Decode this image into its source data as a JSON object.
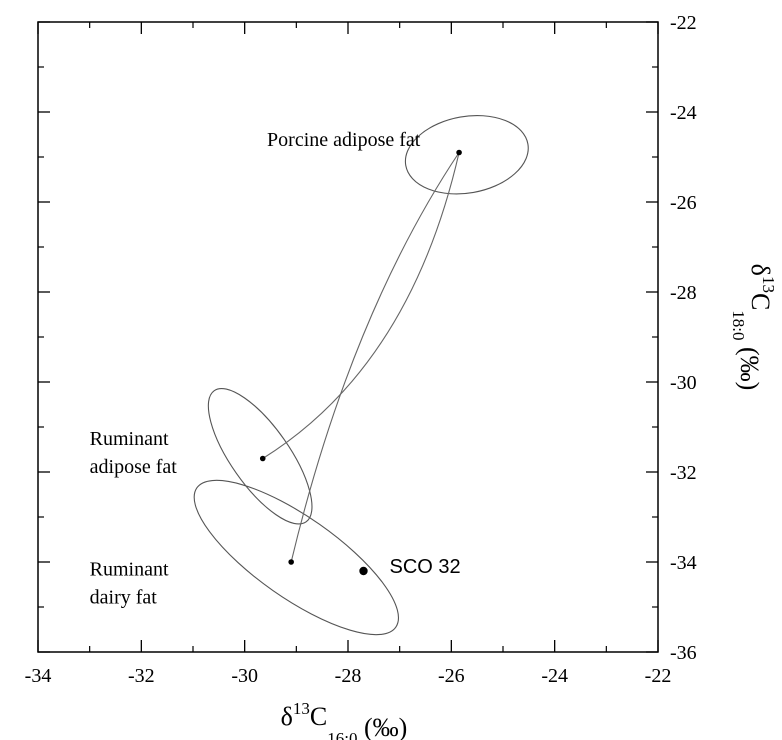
{
  "chart_data": {
    "type": "scatter",
    "xlabel": {
      "base": "δ",
      "sup": "13",
      "main": "C",
      "sub": "16:0",
      "unit": " (‰)"
    },
    "ylabel": {
      "base": "δ",
      "sup": "13",
      "main": "C",
      "sub": "18:0",
      "unit": " (‰)"
    },
    "xlim": [
      -34,
      -22
    ],
    "ylim": [
      -36,
      -22
    ],
    "x_ticks": [
      -34,
      -32,
      -30,
      -28,
      -26,
      -24,
      -22
    ],
    "y_ticks": [
      -36,
      -34,
      -32,
      -30,
      -28,
      -26,
      -24,
      -22
    ],
    "x_tick_labels": [
      "-34",
      "-32",
      "-30",
      "-28",
      "-26",
      "-24",
      "-22"
    ],
    "y_tick_labels": [
      "-36",
      "-34",
      "-32",
      "-30",
      "-28",
      "-26",
      "-24",
      "-22"
    ],
    "grid": false,
    "reference_groups": [
      {
        "label_lines": [
          "Porcine adipose fat"
        ],
        "center": [
          -25.85,
          -24.9
        ],
        "ellipse": {
          "cx": -25.7,
          "cy": -24.95,
          "rx": 1.2,
          "ry": 0.85,
          "angle": -10
        },
        "label_anchor": [
          -26.6,
          -24.75
        ],
        "label_align": "end"
      },
      {
        "label_lines": [
          "Ruminant",
          "adipose fat"
        ],
        "center": [
          -29.65,
          -31.7
        ],
        "ellipse": {
          "cx": -29.7,
          "cy": -31.65,
          "rx": 1.55,
          "ry": 0.65,
          "angle": 55
        },
        "label_anchor": [
          -33.0,
          -31.4
        ],
        "label_align": "start"
      },
      {
        "label_lines": [
          "Ruminant",
          "dairy fat"
        ],
        "center": [
          -29.1,
          -34.0
        ],
        "ellipse": {
          "cx": -29.0,
          "cy": -33.9,
          "rx": 2.35,
          "ry": 0.9,
          "angle": 35
        },
        "label_anchor": [
          -33.0,
          -34.3
        ],
        "label_align": "start"
      }
    ],
    "mixing_lines": [
      {
        "from": [
          -29.65,
          -31.7
        ],
        "to": [
          -25.85,
          -24.9
        ],
        "curvature": "concave"
      },
      {
        "from": [
          -29.1,
          -34.0
        ],
        "to": [
          -25.85,
          -24.9
        ],
        "curvature": "convex"
      }
    ],
    "samples": [
      {
        "label": "SCO 32",
        "x": -27.7,
        "y": -34.2
      }
    ]
  }
}
